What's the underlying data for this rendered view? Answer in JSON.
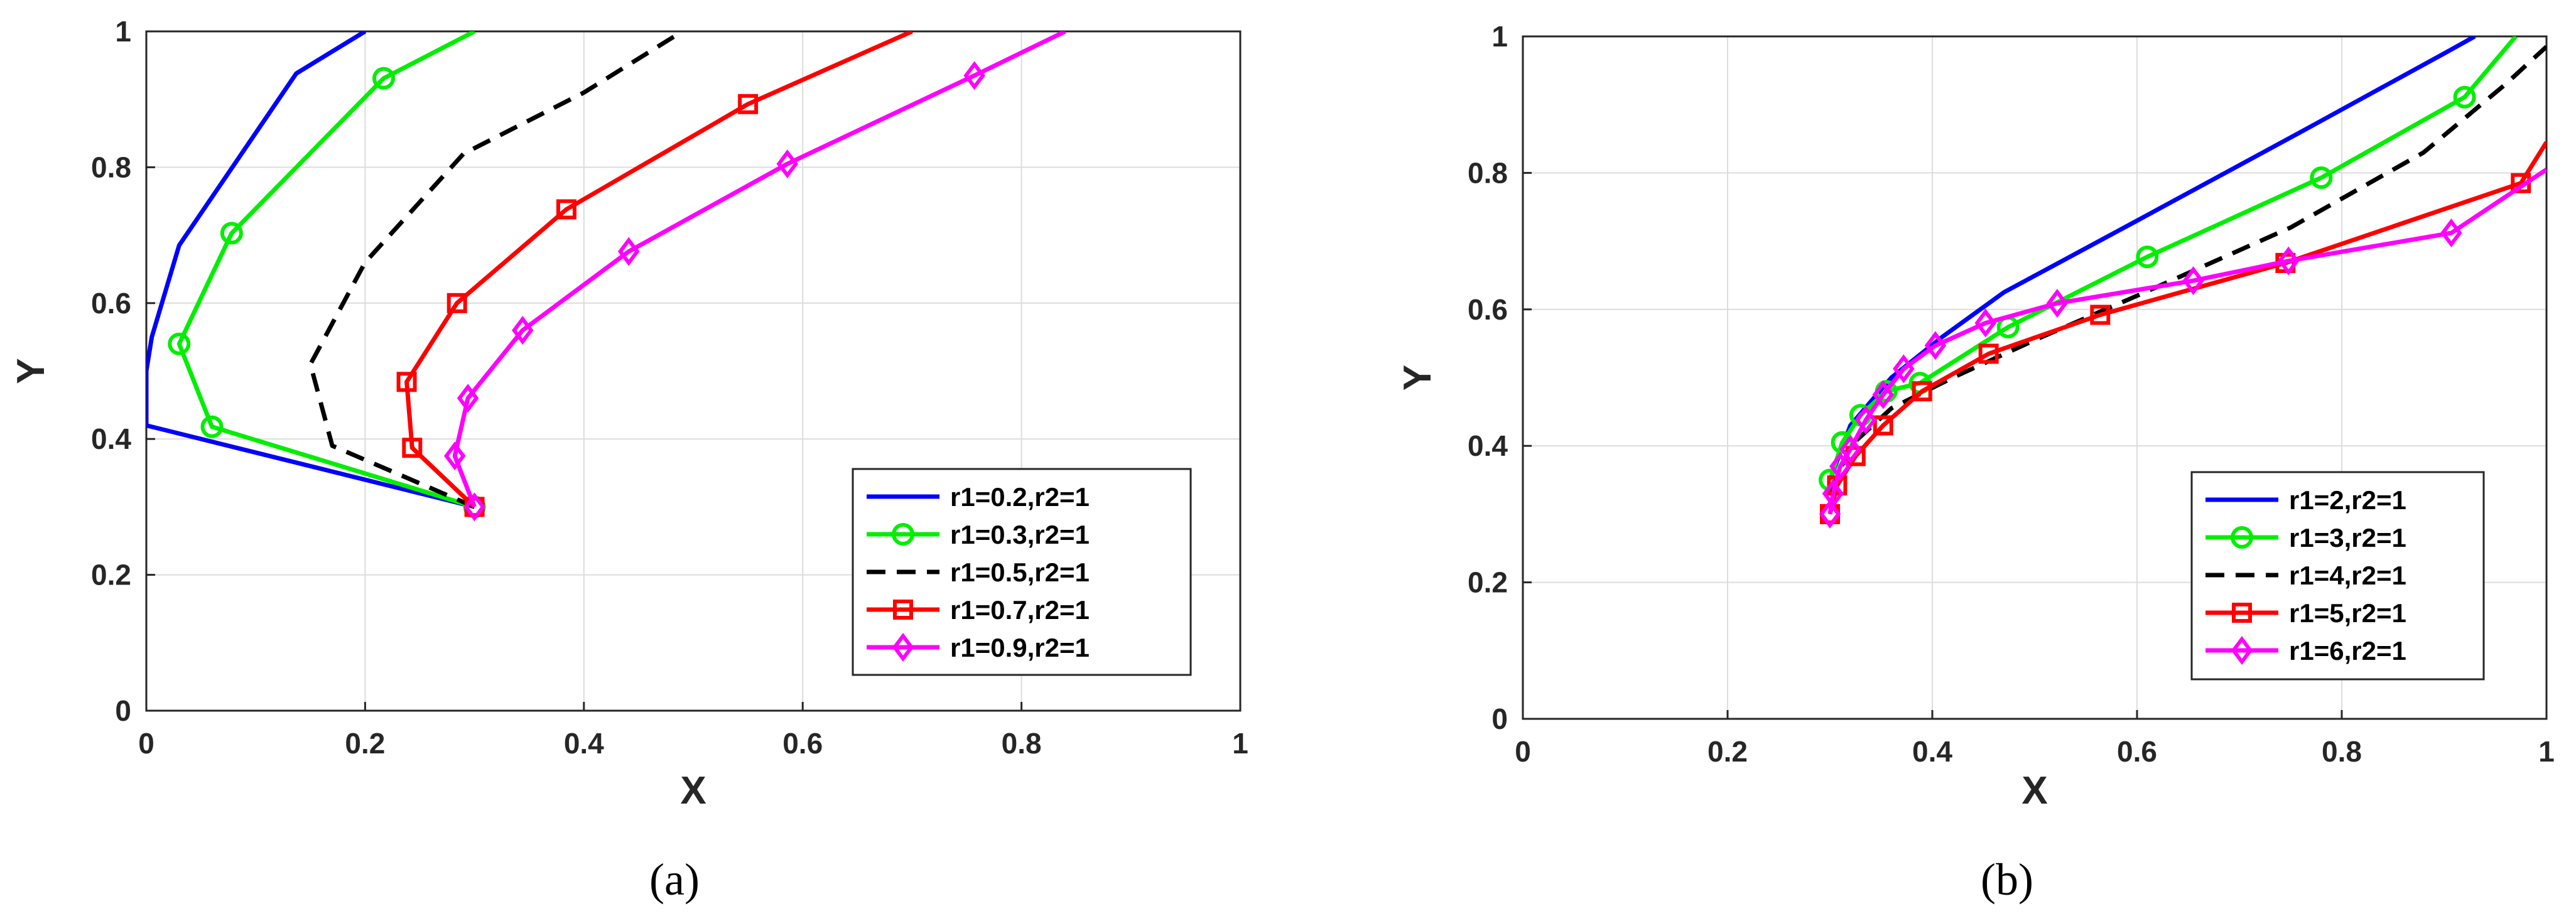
{
  "chart_data": [
    {
      "type": "line",
      "panel_label": "(a)",
      "xlabel": "X",
      "ylabel": "Y",
      "xlim": [
        0,
        1
      ],
      "ylim": [
        0,
        1
      ],
      "x_ticks": [
        "0",
        "0.2",
        "0.4",
        "0.6",
        "0.8",
        "1"
      ],
      "y_ticks": [
        "0",
        "0.2",
        "0.4",
        "0.6",
        "0.8",
        "1"
      ],
      "grid": true,
      "legend_position": "bottom-right",
      "series": [
        {
          "name": "r1=0.2,r2=1",
          "color": "#0000ff",
          "dash": "solid",
          "marker": "none",
          "points": [
            [
              0.3,
              0.3
            ],
            [
              0.0,
              0.42
            ],
            [
              0.0,
              0.5
            ],
            [
              0.005,
              0.55
            ],
            [
              0.03,
              0.685
            ],
            [
              0.137,
              0.938
            ],
            [
              0.2,
              1.0
            ]
          ]
        },
        {
          "name": "r1=0.3,r2=1",
          "color": "#00ee00",
          "dash": "solid",
          "marker": "circle",
          "points": [
            [
              0.3,
              0.3
            ],
            [
              0.06,
              0.418
            ],
            [
              0.03,
              0.54
            ],
            [
              0.078,
              0.703
            ],
            [
              0.217,
              0.931
            ],
            [
              0.3,
              1.0
            ]
          ]
        },
        {
          "name": "r1=0.5,r2=1",
          "color": "#000000",
          "dash": "dash",
          "marker": "none",
          "points": [
            [
              0.3,
              0.3
            ],
            [
              0.17,
              0.39
            ],
            [
              0.15,
              0.51
            ],
            [
              0.2,
              0.66
            ],
            [
              0.29,
              0.82
            ],
            [
              0.4,
              0.91
            ],
            [
              0.49,
              1.0
            ]
          ]
        },
        {
          "name": "r1=0.7,r2=1",
          "color": "#ff0000",
          "dash": "solid",
          "marker": "square",
          "points": [
            [
              0.3,
              0.3
            ],
            [
              0.243,
              0.387
            ],
            [
              0.238,
              0.484
            ],
            [
              0.284,
              0.6
            ],
            [
              0.384,
              0.738
            ],
            [
              0.55,
              0.893
            ],
            [
              0.7,
              1.0
            ]
          ]
        },
        {
          "name": "r1=0.9,r2=1",
          "color": "#ff00ff",
          "dash": "solid",
          "marker": "diamond",
          "points": [
            [
              0.3,
              0.3
            ],
            [
              0.282,
              0.375
            ],
            [
              0.294,
              0.46
            ],
            [
              0.344,
              0.56
            ],
            [
              0.441,
              0.676
            ],
            [
              0.586,
              0.805
            ],
            [
              0.757,
              0.935
            ],
            [
              0.84,
              1.0
            ]
          ]
        }
      ]
    },
    {
      "type": "line",
      "panel_label": "(b)",
      "xlabel": "X",
      "ylabel": "Y",
      "xlim": [
        0,
        1
      ],
      "ylim": [
        0,
        1
      ],
      "x_ticks": [
        "0",
        "0.2",
        "0.4",
        "0.6",
        "0.8",
        "1"
      ],
      "y_ticks": [
        "0",
        "0.2",
        "0.4",
        "0.6",
        "0.8",
        "1"
      ],
      "grid": true,
      "legend_position": "bottom-right",
      "series": [
        {
          "name": "r1=2,r2=1",
          "color": "#0000ff",
          "dash": "solid",
          "marker": "none",
          "points": [
            [
              0.3,
              0.35
            ],
            [
              0.32,
              0.43
            ],
            [
              0.36,
              0.5
            ],
            [
              0.41,
              0.56
            ],
            [
              0.47,
              0.625
            ],
            [
              0.6,
              0.73
            ],
            [
              0.76,
              0.86
            ],
            [
              0.9,
              0.975
            ],
            [
              0.93,
              1.0
            ]
          ]
        },
        {
          "name": "r1=3,r2=1",
          "color": "#00ee00",
          "dash": "solid",
          "marker": "circle",
          "points": [
            [
              0.3,
              0.35
            ],
            [
              0.312,
              0.405
            ],
            [
              0.33,
              0.445
            ],
            [
              0.355,
              0.48
            ],
            [
              0.388,
              0.492
            ],
            [
              0.474,
              0.574
            ],
            [
              0.61,
              0.677
            ],
            [
              0.78,
              0.793
            ],
            [
              0.92,
              0.911
            ],
            [
              0.97,
              1.0
            ]
          ]
        },
        {
          "name": "r1=4,r2=1",
          "color": "#000000",
          "dash": "dash",
          "marker": "none",
          "points": [
            [
              0.3,
              0.33
            ],
            [
              0.32,
              0.4
            ],
            [
              0.36,
              0.455
            ],
            [
              0.42,
              0.5
            ],
            [
              0.5,
              0.555
            ],
            [
              0.6,
              0.62
            ],
            [
              0.75,
              0.72
            ],
            [
              0.88,
              0.83
            ],
            [
              0.96,
              0.93
            ],
            [
              1.0,
              0.985
            ]
          ]
        },
        {
          "name": "r1=5,r2=1",
          "color": "#ff0000",
          "dash": "solid",
          "marker": "square",
          "points": [
            [
              0.3,
              0.3
            ],
            [
              0.307,
              0.342
            ],
            [
              0.325,
              0.385
            ],
            [
              0.352,
              0.43
            ],
            [
              0.39,
              0.48
            ],
            [
              0.455,
              0.535
            ],
            [
              0.564,
              0.592
            ],
            [
              0.745,
              0.668
            ],
            [
              0.975,
              0.785
            ],
            [
              1.0,
              0.845
            ]
          ]
        },
        {
          "name": "r1=6,r2=1",
          "color": "#ff00ff",
          "dash": "solid",
          "marker": "diamond",
          "points": [
            [
              0.3,
              0.3
            ],
            [
              0.303,
              0.33
            ],
            [
              0.31,
              0.37
            ],
            [
              0.32,
              0.395
            ],
            [
              0.335,
              0.438
            ],
            [
              0.352,
              0.475
            ],
            [
              0.372,
              0.513
            ],
            [
              0.403,
              0.547
            ],
            [
              0.452,
              0.58
            ],
            [
              0.522,
              0.609
            ],
            [
              0.655,
              0.642
            ],
            [
              0.748,
              0.671
            ],
            [
              0.907,
              0.712
            ],
            [
              1.0,
              0.805
            ]
          ]
        }
      ]
    }
  ]
}
